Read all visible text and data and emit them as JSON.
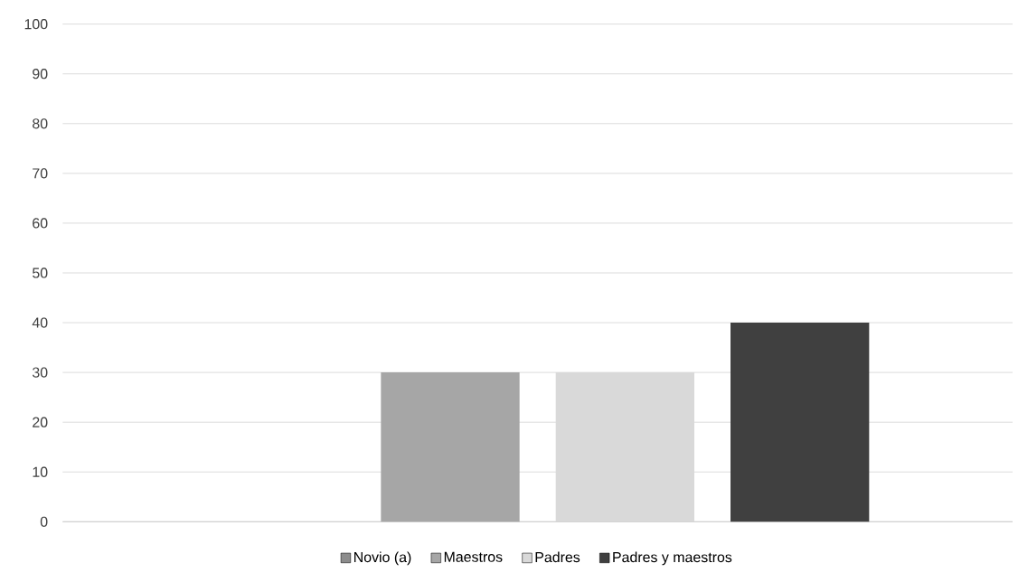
{
  "chart_data": {
    "type": "bar",
    "categories": [
      null
    ],
    "series": [
      {
        "name": "Novio (a)",
        "color": "#8c8c8c",
        "values": [
          0
        ]
      },
      {
        "name": "Maestros",
        "color": "#a6a6a6",
        "values": [
          30
        ]
      },
      {
        "name": "Padres",
        "color": "#d9d9d9",
        "values": [
          30
        ]
      },
      {
        "name": "Padres y maestros",
        "color": "#404040",
        "values": [
          40
        ]
      }
    ],
    "ylim": [
      0,
      100
    ],
    "yticks": [
      0,
      10,
      20,
      30,
      40,
      50,
      60,
      70,
      80,
      90,
      100
    ],
    "grid": "y",
    "legend": "bottom"
  }
}
